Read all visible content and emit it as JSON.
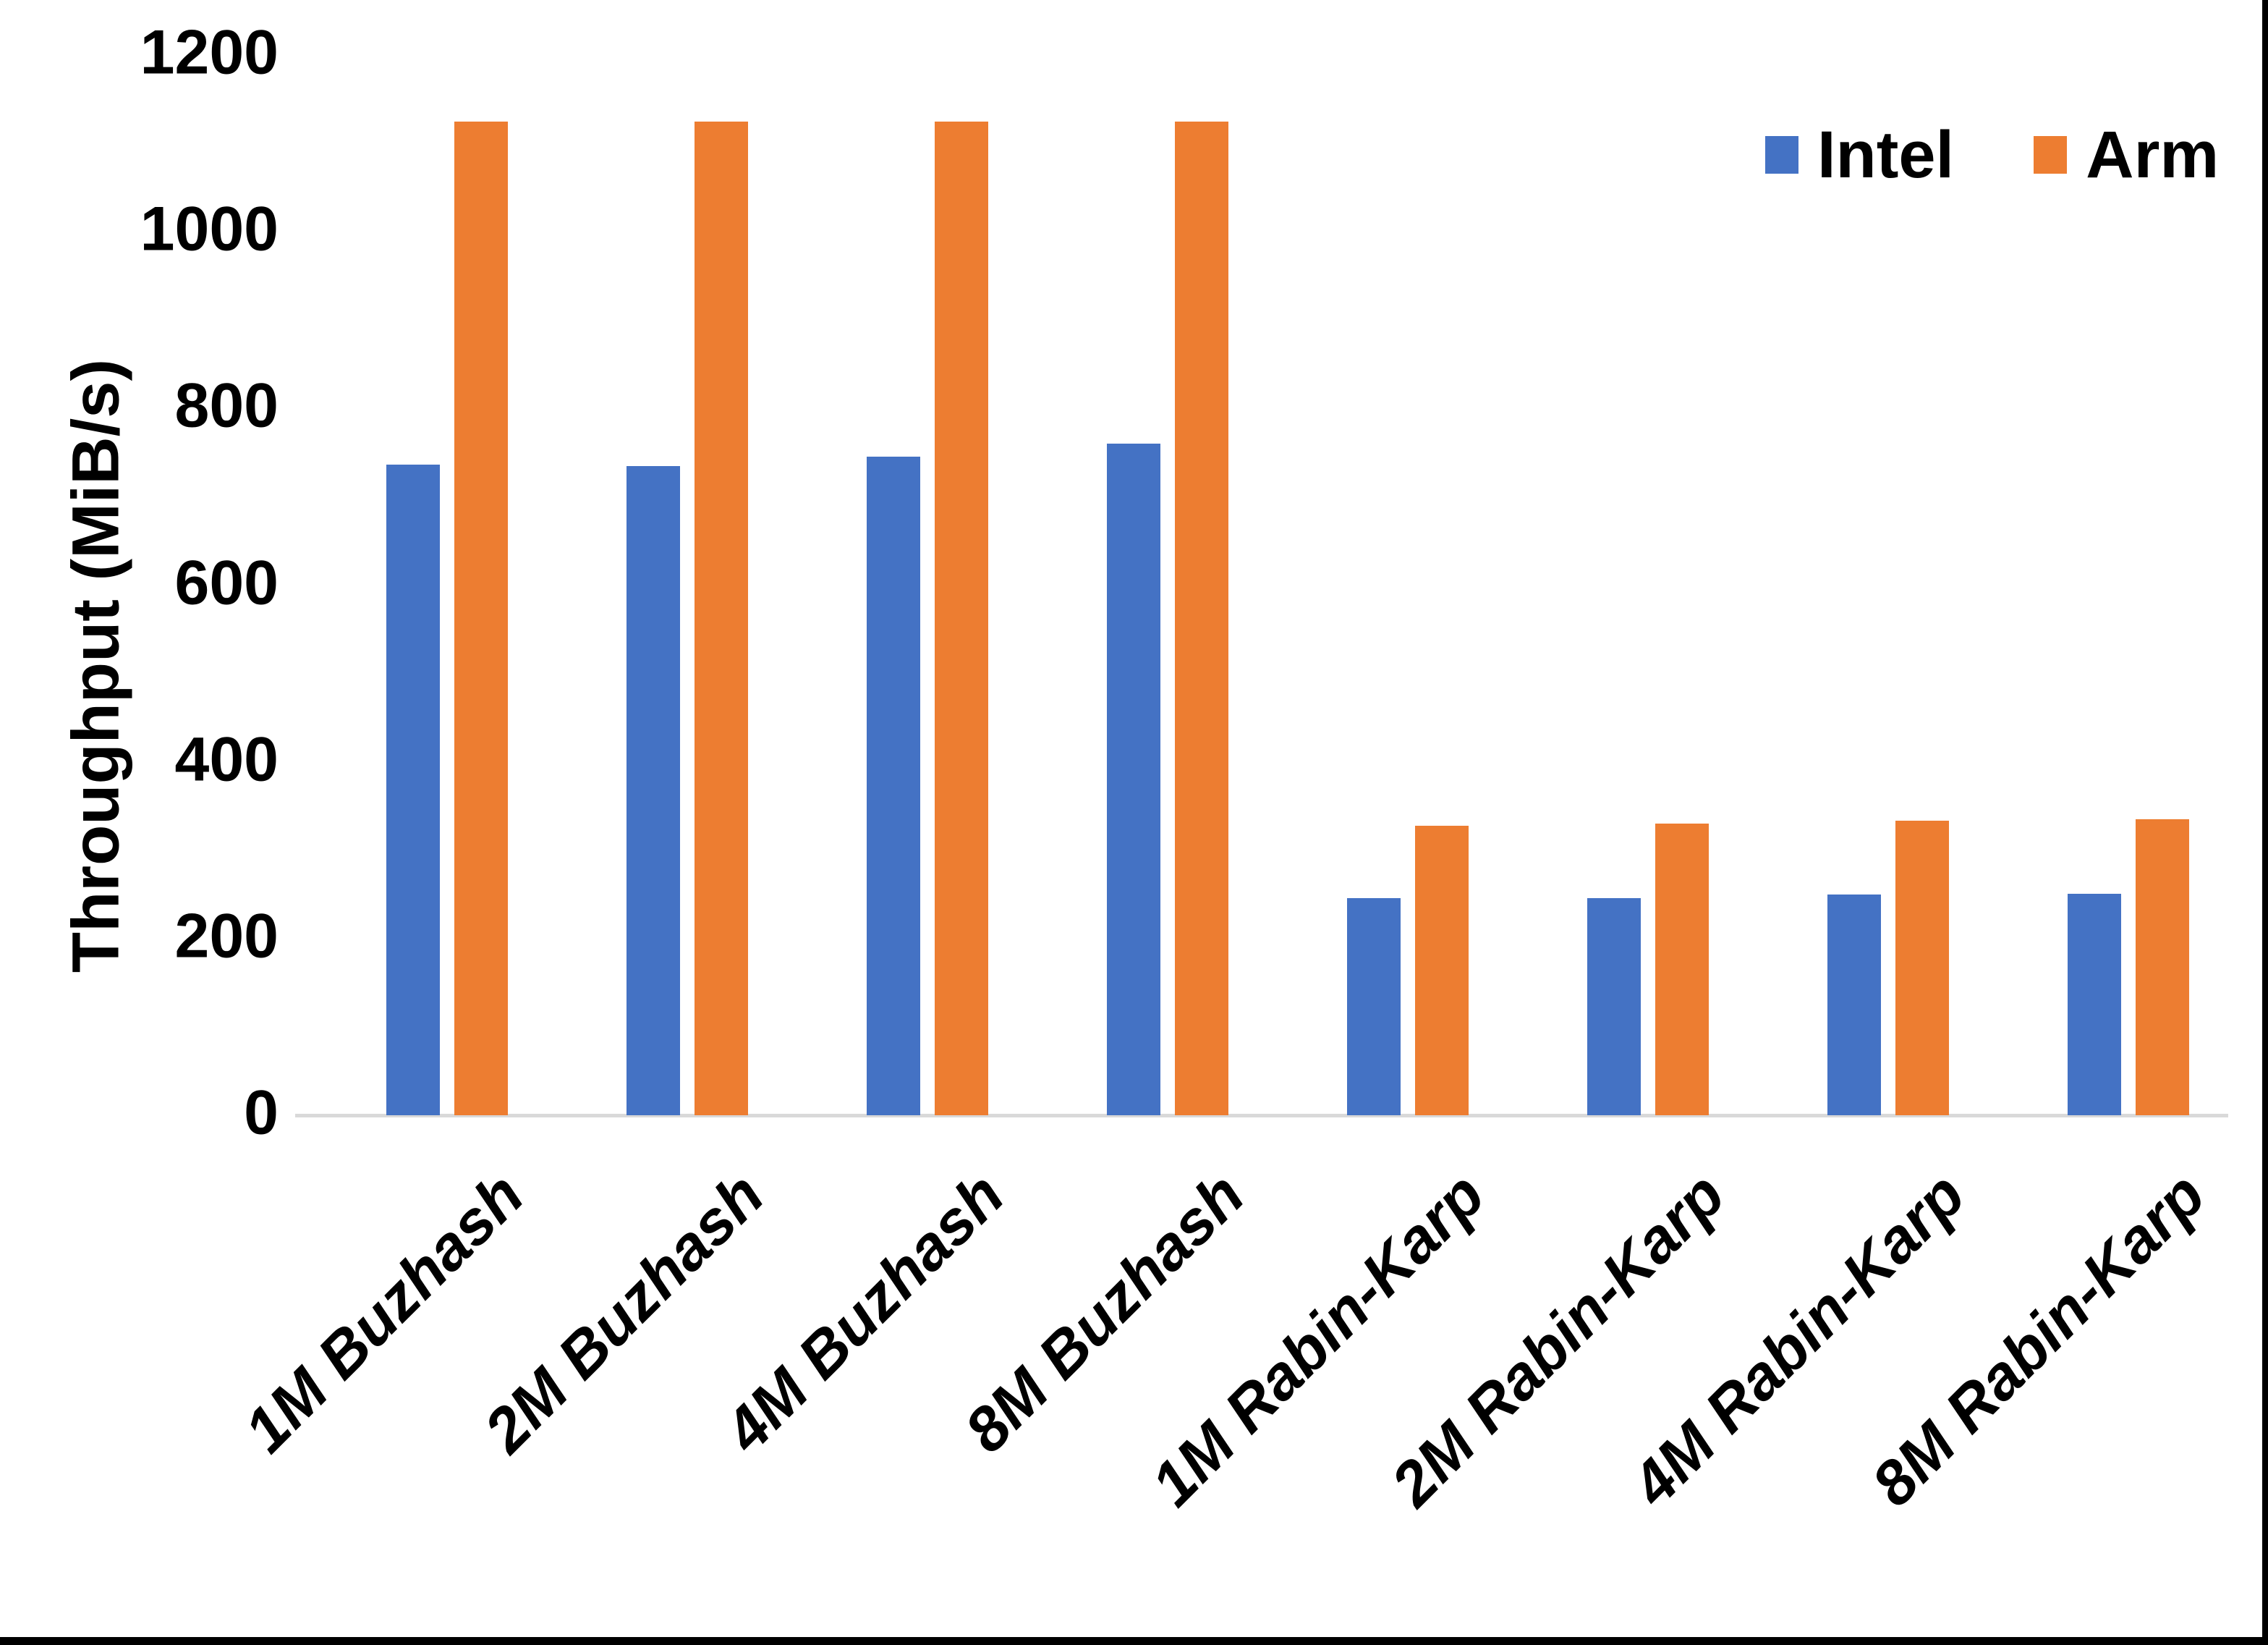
{
  "chart_data": {
    "type": "bar",
    "title": "",
    "xlabel": "",
    "ylabel": "Throughput (MiB/s)",
    "ylim": [
      0,
      1200
    ],
    "yticks": [
      0,
      200,
      400,
      600,
      800,
      1000,
      1200
    ],
    "grid": false,
    "legend_position": "top-right",
    "background": "#FFFFFF",
    "axis_line_color": "#D9D9D9",
    "categories": [
      "1M Buzhash",
      "2M Buzhash",
      "4M Buzhash",
      "8M Buzhash",
      "1M Rabin-Karp",
      "2M Rabin-Karp",
      "4M Rabin-Karp",
      "8M Rabin-Karp"
    ],
    "series": [
      {
        "name": "Intel",
        "color": "#4472C4",
        "values": [
          736,
          735,
          745,
          760,
          246,
          246,
          250,
          251
        ]
      },
      {
        "name": "Arm",
        "color": "#ED7D31",
        "values": [
          1125,
          1125,
          1125,
          1125,
          328,
          330,
          333,
          335
        ]
      }
    ]
  }
}
